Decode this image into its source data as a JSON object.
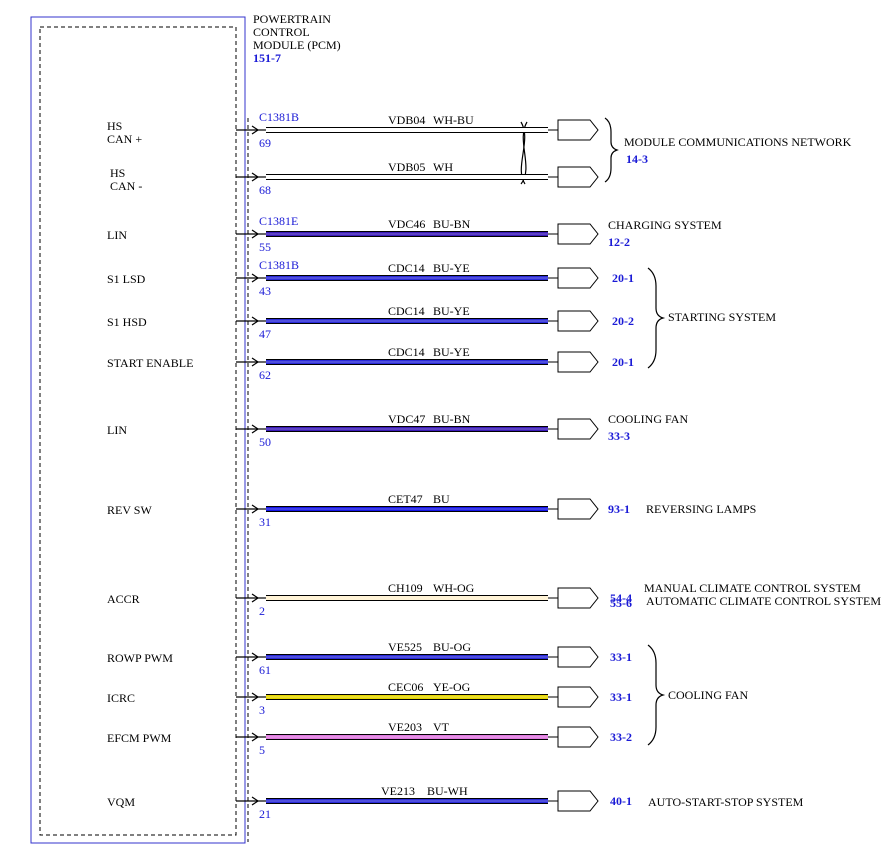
{
  "module": {
    "name_lines": [
      "POWERTRAIN",
      "CONTROL",
      "MODULE (PCM)"
    ],
    "ref": "151-7"
  },
  "colors": {
    "module_border": "#3333cc",
    "link": "#1a1ad6",
    "WH-BU": "#ffffff",
    "WH": "#ffffff",
    "BU-BN": "#3a1ab8",
    "BU-YE": "#2a2ad8",
    "BU": "#1414e6",
    "WH-OG": "#fff3d6",
    "BU-OG": "#2a2ad8",
    "YE-OG": "#e6d600",
    "VT": "#e07ae0",
    "BU-WH": "#2a2ad8"
  },
  "wires": [
    {
      "pin_label": [
        "HS",
        "CAN +"
      ],
      "connector": "C1381B",
      "pin": "69",
      "circuit": "VDB04",
      "color_code": "WH-BU",
      "dest_ref": "",
      "twisted": true
    },
    {
      "pin_label": [
        "HS",
        "CAN -"
      ],
      "connector": "",
      "pin": "68",
      "circuit": "VDB05",
      "color_code": "WH",
      "dest_ref": "",
      "twisted": true
    },
    {
      "pin_label": [
        "LIN"
      ],
      "connector": "C1381E",
      "pin": "55",
      "circuit": "VDC46",
      "color_code": "BU-BN",
      "dest_ref": ""
    },
    {
      "pin_label": [
        "S1 LSD"
      ],
      "connector": "C1381B",
      "pin": "43",
      "circuit": "CDC14",
      "color_code": "BU-YE",
      "dest_ref": "20-1"
    },
    {
      "pin_label": [
        "S1 HSD"
      ],
      "connector": "",
      "pin": "47",
      "circuit": "CDC14",
      "color_code": "BU-YE",
      "dest_ref": "20-2"
    },
    {
      "pin_label": [
        "START ENABLE"
      ],
      "connector": "",
      "pin": "62",
      "circuit": "CDC14",
      "color_code": "BU-YE",
      "dest_ref": "20-1"
    },
    {
      "pin_label": [
        "LIN"
      ],
      "connector": "",
      "pin": "50",
      "circuit": "VDC47",
      "color_code": "BU-BN",
      "dest_ref": ""
    },
    {
      "pin_label": [
        "REV SW"
      ],
      "connector": "",
      "pin": "31",
      "circuit": "CET47",
      "color_code": "BU",
      "dest_ref": "93-1"
    },
    {
      "pin_label": [
        "ACCR"
      ],
      "connector": "",
      "pin": "2",
      "circuit": "CH109",
      "color_code": "WH-OG",
      "dest_ref": "54-4"
    },
    {
      "pin_label": [
        "ROWP PWM"
      ],
      "connector": "",
      "pin": "61",
      "circuit": "VE525",
      "color_code": "BU-OG",
      "dest_ref": "33-1"
    },
    {
      "pin_label": [
        "ICRC"
      ],
      "connector": "",
      "pin": "3",
      "circuit": "CEC06",
      "color_code": "YE-OG",
      "dest_ref": "33-1"
    },
    {
      "pin_label": [
        "EFCM PWM"
      ],
      "connector": "",
      "pin": "5",
      "circuit": "VE203",
      "color_code": "VT",
      "dest_ref": "33-2"
    },
    {
      "pin_label": [
        "VQM"
      ],
      "connector": "",
      "pin": "21",
      "circuit": "VE213",
      "color_code": "BU-WH",
      "dest_ref": "40-1"
    }
  ],
  "destinations": {
    "network": {
      "name": "MODULE COMMUNICATIONS NETWORK",
      "ref": "14-3"
    },
    "charging": {
      "name": "CHARGING SYSTEM",
      "ref": "12-2"
    },
    "starting": {
      "name": "STARTING SYSTEM"
    },
    "cooling_fan_lin": {
      "name": "COOLING FAN",
      "ref": "33-3"
    },
    "reversing": {
      "name": "REVERSING LAMPS"
    },
    "manual_climate": {
      "name": "MANUAL CLIMATE CONTROL SYSTEM"
    },
    "auto_climate": {
      "name": "AUTOMATIC CLIMATE CONTROL SYSTEM",
      "ref": "55-6"
    },
    "cooling_fan_group": {
      "name": "COOLING FAN"
    },
    "auto_start_stop": {
      "name": "AUTO-START-STOP SYSTEM"
    }
  }
}
